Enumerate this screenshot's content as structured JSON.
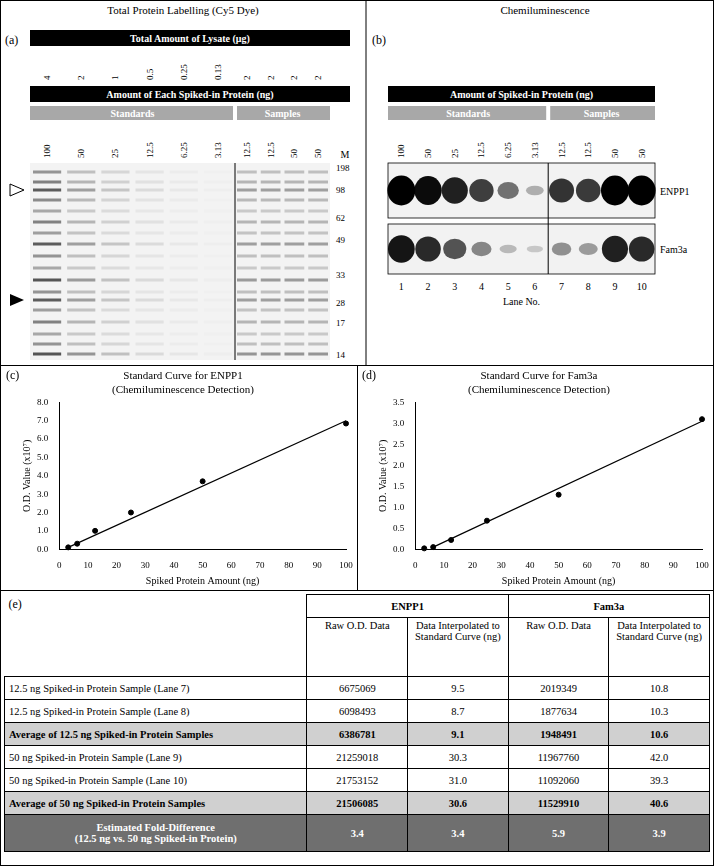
{
  "panel_a": {
    "label": "(a)",
    "title": "Total Protein Labelling (Cy5 Dye)",
    "lysate_header": "Total Amount of Lysate (μg)",
    "lysate_amounts": [
      "4",
      "2",
      "1",
      "0.5",
      "0.25",
      "0.13",
      "2",
      "2",
      "2",
      "2"
    ],
    "spike_header": "Amount of Each Spiked-in Protein (ng)",
    "groups": [
      "Standards",
      "Samples"
    ],
    "spike_amounts": [
      "100",
      "50",
      "25",
      "12.5",
      "6.25",
      "3.13",
      "12.5",
      "12.5",
      "50",
      "50"
    ],
    "marker_header": "M",
    "marker_sizes": [
      "198",
      "98",
      "62",
      "49",
      "33",
      "28",
      "17",
      "14"
    ]
  },
  "panel_b": {
    "label": "(b)",
    "title": "Chemiluminescence",
    "spike_header": "Amount of Spiked-in Protein (ng)",
    "groups": [
      "Standards",
      "Samples"
    ],
    "spike_amounts": [
      "100",
      "50",
      "25",
      "12.5",
      "6.25",
      "3.13",
      "12.5",
      "12.5",
      "50",
      "50"
    ],
    "proteins": [
      "ENPP1",
      "Fam3a"
    ],
    "lane_numbers": [
      "1",
      "2",
      "3",
      "4",
      "5",
      "6",
      "7",
      "8",
      "9",
      "10"
    ],
    "lane_axis": "Lane No."
  },
  "chart_data": [
    {
      "type": "scatter",
      "panel_label": "(c)",
      "title": "Standard Curve for ENPP1",
      "subtitle": "(Chemiluminescence Detection)",
      "x_label": "Spiked Protein Amount (ng)",
      "y_label": "O.D. Value (x10⁷)",
      "xlim": [
        0,
        100
      ],
      "xticks": [
        0,
        10,
        20,
        30,
        40,
        50,
        60,
        70,
        80,
        90,
        100
      ],
      "ylim": [
        0,
        8
      ],
      "yticks": [
        {
          "value": 0,
          "label": "0.0"
        },
        {
          "value": 1,
          "label": "1.0"
        },
        {
          "value": 2,
          "label": "2.0"
        },
        {
          "value": 3,
          "label": "3.0"
        },
        {
          "value": 4,
          "label": "4.0"
        },
        {
          "value": 5,
          "label": "5.0"
        },
        {
          "value": 6,
          "label": "6.0"
        },
        {
          "value": 7,
          "label": "7.0"
        },
        {
          "value": 8,
          "label": "8.0"
        }
      ],
      "grid": false,
      "series": [
        {
          "type": "scatter",
          "marker": "circle",
          "color": "#000000",
          "x": [
            3.13,
            6.25,
            12.5,
            25,
            50,
            100
          ],
          "values": [
            0.1,
            0.3,
            1.0,
            2.0,
            3.7,
            6.85
          ]
        },
        {
          "type": "line",
          "line_style": "solid",
          "color": "#000000",
          "x": [
            3.13,
            100
          ],
          "values": [
            0.1,
            7.0
          ]
        }
      ]
    },
    {
      "type": "scatter",
      "panel_label": "(d)",
      "title": "Standard Curve for Fam3a",
      "subtitle": "(Chemiluminescence Detection)",
      "x_label": "Spiked Protein Amount (ng)",
      "y_label": "O.D. Value (x10⁷)",
      "xlim": [
        0,
        100
      ],
      "xticks": [
        0,
        10,
        20,
        30,
        40,
        50,
        60,
        70,
        80,
        90,
        100
      ],
      "ylim": [
        0,
        3.5
      ],
      "yticks": [
        {
          "value": 0,
          "label": "0.0"
        },
        {
          "value": 0.5,
          "label": "0.5"
        },
        {
          "value": 1,
          "label": "1.0"
        },
        {
          "value": 1.5,
          "label": "1.5"
        },
        {
          "value": 2,
          "label": "2.0"
        },
        {
          "value": 2.5,
          "label": "2.5"
        },
        {
          "value": 3,
          "label": "3.0"
        },
        {
          "value": 3.5,
          "label": "3.5"
        }
      ],
      "grid": false,
      "series": [
        {
          "type": "scatter",
          "marker": "circle",
          "color": "#000000",
          "x": [
            3.13,
            6.25,
            12.5,
            25,
            50,
            100
          ],
          "values": [
            0.02,
            0.05,
            0.22,
            0.68,
            1.3,
            3.1
          ]
        },
        {
          "type": "line",
          "line_style": "solid",
          "color": "#000000",
          "x": [
            6.25,
            100
          ],
          "values": [
            0.05,
            3.05
          ]
        }
      ]
    }
  ],
  "table": {
    "label": "(e)",
    "groups": [
      "ENPP1",
      "Fam3a"
    ],
    "columns": [
      "Raw O.D. Data",
      "Data Interpolated to Standard Curve (ng)",
      "Raw O.D. Data",
      "Data Interpolated to Standard Curve (ng)"
    ],
    "rows": [
      [
        "12.5 ng Spiked-in Protein Sample (Lane 7)",
        "6675069",
        "9.5",
        "2019349",
        "10.8"
      ],
      [
        "12.5 ng Spiked-in Protein Sample (Lane 8)",
        "6098493",
        "8.7",
        "1877634",
        "10.3"
      ],
      [
        "Average of 12.5 ng Spiked-in Protein Samples",
        "6386781",
        "9.1",
        "1948491",
        "10.6"
      ],
      [
        "50 ng Spiked-in Protein Sample (Lane 9)",
        "21259018",
        "30.3",
        "11967760",
        "42.0"
      ],
      [
        "50 ng Spiked-in Protein Sample (Lane 10)",
        "21753152",
        "31.0",
        "11092060",
        "39.3"
      ],
      [
        "Average of 50 ng Spiked-in Protein Samples",
        "21506085",
        "30.6",
        "11529910",
        "40.6"
      ],
      [
        [
          "Estimated Fold-Difference",
          "(12.5 ng vs. 50 ng Spiked-in Protein)"
        ],
        "3.4",
        "3.4",
        "5.9",
        "3.9"
      ]
    ]
  }
}
